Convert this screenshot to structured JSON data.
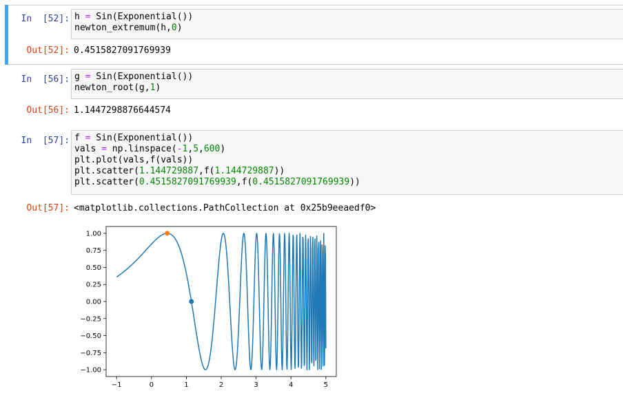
{
  "cells": [
    {
      "in_prompt": "In  [52]:",
      "code": [
        [
          "h ",
          "=",
          " Sin(Exponential())"
        ],
        [
          "newton_extremum(h,",
          "0",
          ")"
        ]
      ],
      "out_prompt": "Out[52]:",
      "output": "0.4515827091769939"
    },
    {
      "in_prompt": "In  [56]:",
      "code": [
        [
          "g ",
          "=",
          " Sin(Exponential())"
        ],
        [
          "newton_root(g,",
          "1",
          ")"
        ]
      ],
      "out_prompt": "Out[56]:",
      "output": "1.1447298876644574"
    },
    {
      "in_prompt": "In  [57]:",
      "code_lines": [
        "f = Sin(Exponential())",
        "vals = np.linspace(-1,5,600)",
        "plt.plot(vals,f(vals))",
        "plt.scatter(1.144729887,f(1.144729887))",
        "plt.scatter(0.4515827091769939,f(0.4515827091769939))"
      ],
      "out_prompt": "Out[57]:",
      "output": "<matplotlib.collections.PathCollection at 0x25b9eeaedf0>"
    }
  ],
  "chart_data": {
    "type": "line",
    "function": "sin(exp(x))",
    "x_range": [
      -1,
      5
    ],
    "num_samples": 600,
    "xlim": [
      -1.3,
      5.3
    ],
    "ylim": [
      -1.1,
      1.1
    ],
    "x_ticks": [
      -1,
      0,
      1,
      2,
      3,
      4,
      5
    ],
    "x_tick_labels": [
      "−1",
      "0",
      "1",
      "2",
      "3",
      "4",
      "5"
    ],
    "y_ticks": [
      1.0,
      0.75,
      0.5,
      0.25,
      0.0,
      -0.25,
      -0.5,
      -0.75,
      -1.0
    ],
    "y_tick_labels": [
      "1.00",
      "0.75",
      "0.50",
      "0.25",
      "0.00",
      "−0.25",
      "−0.50",
      "−0.75",
      "−1.00"
    ],
    "series": [
      {
        "kind": "line",
        "color": "#1f77b4"
      },
      {
        "kind": "scatter",
        "x": [
          1.144729887
        ],
        "y": [
          0.0
        ],
        "color": "#1f77b4"
      },
      {
        "kind": "scatter",
        "x": [
          0.4515827091769939
        ],
        "y": [
          1.0
        ],
        "color": "#ff7f0e"
      }
    ]
  }
}
